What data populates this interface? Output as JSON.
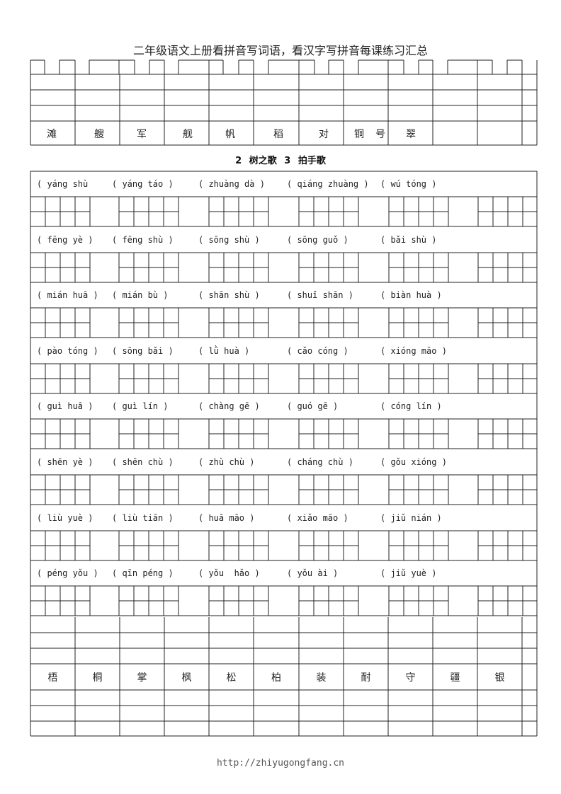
{
  "header": {
    "title": "二年级语文上册看拼音写词语，看汉字写拼音每课练习汇总"
  },
  "top_section": {
    "characters": [
      "滩",
      "艘",
      "军",
      "舰",
      "帆",
      "稻",
      "对",
      "铜",
      "号",
      "翠"
    ]
  },
  "lesson": {
    "title": "2 树之歌   3 拍手歌"
  },
  "pinyin_rows": [
    [
      "( yáng shù",
      "( yáng táo )",
      "( zhuàng dà )",
      "( qiáng zhuàng )",
      "( wú tóng )"
    ],
    [
      "( fēng yè )",
      "( fēng shù )",
      "( sōng shù )",
      "( sōng guǒ )",
      "( bǎi shù )"
    ],
    [
      "( mián huā )",
      "( mián bù )",
      "( shān shù )",
      "( shuǐ shān )",
      "( biàn huà )"
    ],
    [
      "( pào tóng )",
      "( sōng bǎi )",
      "( lǜ huà )",
      "( cǎo cóng )",
      "( xióng māo )"
    ],
    [
      "( guì huā )",
      "( guì lín )",
      "( chàng gē )",
      "( guó gē )",
      "( cóng lín )"
    ],
    [
      "( shēn yè )",
      "( shēn chù )",
      "( zhù chù )",
      "( cháng chù )",
      "( gǒu xióng )"
    ],
    [
      "( liù yuè )",
      "( liù tiān )",
      "( huā māo )",
      "( xiǎo māo )",
      "( jiǔ nián )"
    ],
    [
      "( péng yǒu )",
      "( qīn péng )",
      "( yǒu  hǎo )",
      "( yǒu ài )",
      "( jiǔ yuè )"
    ]
  ],
  "bottom_section": {
    "characters": [
      "梧",
      "桐",
      "掌",
      "枫",
      "松",
      "柏",
      "装",
      "耐",
      "守",
      "疆",
      "银"
    ]
  },
  "footer": {
    "url": "http://zhiyugongfang.cn"
  }
}
